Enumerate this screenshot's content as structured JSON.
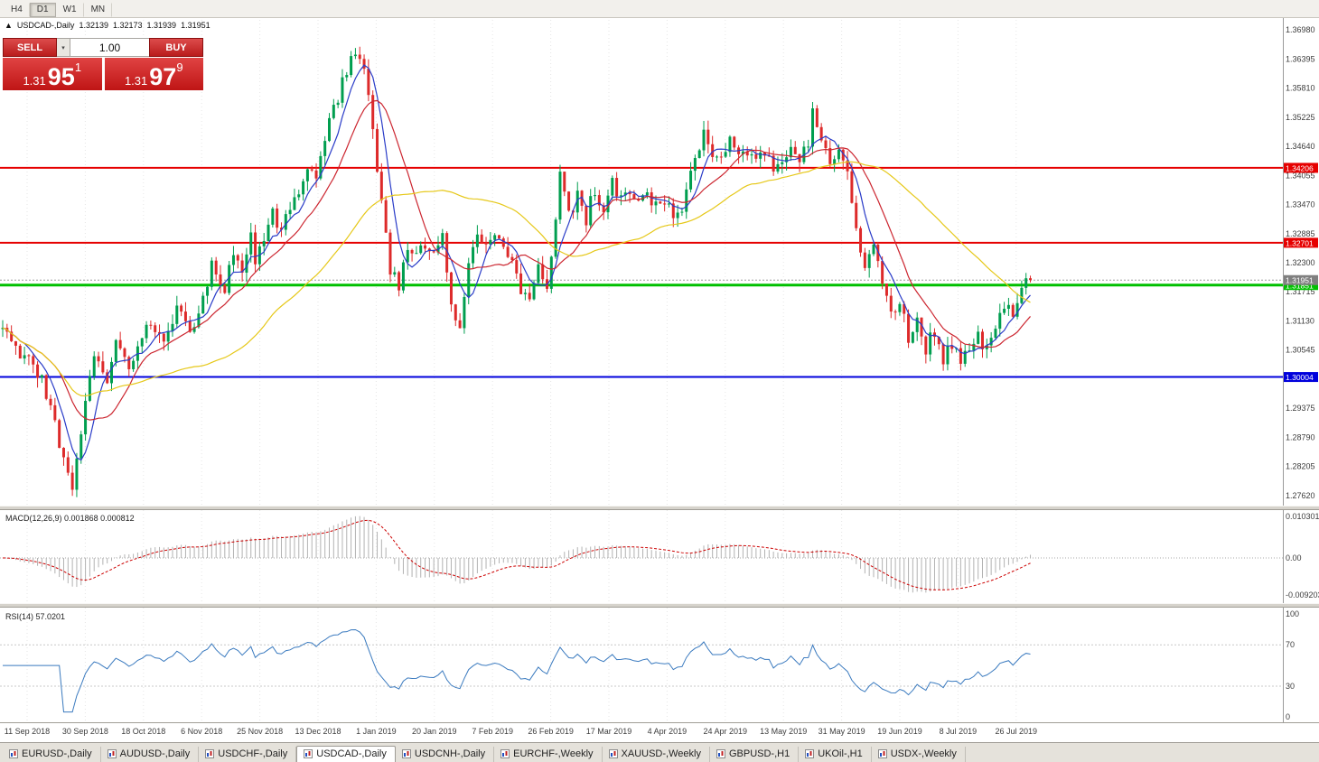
{
  "toolbar": {
    "timeframes": [
      "H4",
      "D1",
      "W1",
      "MN"
    ],
    "active": "D1"
  },
  "header": {
    "collapse_icon": "▲",
    "symbol": "USDCAD-,Daily",
    "open": "1.32139",
    "high": "1.32173",
    "low": "1.31939",
    "close": "1.31951"
  },
  "trade_panel": {
    "sell_label": "SELL",
    "buy_label": "BUY",
    "volume": "1.00",
    "volume_dropdown_icon": "▾",
    "bid": {
      "prefix": "1.31",
      "big": "95",
      "sup": "1"
    },
    "ask": {
      "prefix": "1.31",
      "big": "97",
      "sup": "9"
    }
  },
  "price_axis": {
    "labels": [
      "1.36980",
      "1.36395",
      "1.35810",
      "1.35225",
      "1.34640",
      "1.34055",
      "1.33470",
      "1.32885",
      "1.32300",
      "1.31715",
      "1.31130",
      "1.30545",
      "1.29960",
      "1.29375",
      "1.28790",
      "1.28205",
      "1.27620"
    ]
  },
  "level_lines": [
    {
      "value": 1.34206,
      "label": "1.34206",
      "color": "#e60000",
      "width": 2
    },
    {
      "value": 1.32701,
      "label": "1.32701",
      "color": "#e60000",
      "width": 2
    },
    {
      "value": 1.31851,
      "label": "1.31851",
      "color": "#00c000",
      "width": 3
    },
    {
      "value": 1.30004,
      "label": "1.30004",
      "color": "#0000dc",
      "width": 2
    }
  ],
  "current_price": {
    "value": 1.31951,
    "label": "1.31951",
    "color": "#808080"
  },
  "macd_panel": {
    "title": "MACD(12,26,9)",
    "values": "0.001868 0.000812",
    "axis_labels": [
      "0.0103011",
      "0.00",
      "-0.0092034"
    ]
  },
  "rsi_panel": {
    "title": "RSI(14)",
    "value": "57.0201",
    "axis_labels": [
      "100",
      "70",
      "30",
      "0"
    ],
    "levels": [
      70,
      30
    ]
  },
  "tabs": {
    "items": [
      "EURUSD-,Daily",
      "AUDUSD-,Daily",
      "USDCHF-,Daily",
      "USDCAD-,Daily",
      "USDCNH-,Daily",
      "EURCHF-,Weekly",
      "XAUUSD-,Weekly",
      "GBPUSD-,H1",
      "UKOil-,H1",
      "USDX-,Weekly"
    ],
    "active": "USDCAD-,Daily"
  },
  "chart_data": {
    "type": "candlestick",
    "symbol": "USDCAD",
    "timeframe": "Daily",
    "ohlc_last": {
      "open": 1.32139,
      "high": 1.32173,
      "low": 1.31939,
      "close": 1.31951
    },
    "ylim": [
      1.2742,
      1.3718
    ],
    "candle_count": 237,
    "last_close": 1.31951,
    "support_resistance_levels": [
      1.34206,
      1.32701,
      1.31851,
      1.30004
    ],
    "dates": [
      "11 Sep 2018",
      "30 Sep 2018",
      "18 Oct 2018",
      "6 Nov 2018",
      "25 Nov 2018",
      "13 Dec 2018",
      "1 Jan 2019",
      "20 Jan 2019",
      "7 Feb 2019",
      "26 Feb 2019",
      "17 Mar 2019",
      "4 Apr 2019",
      "24 Apr 2019",
      "13 May 2019",
      "31 May 2019",
      "19 Jun 2019",
      "8 Jul 2019",
      "26 Jul 2019"
    ],
    "price_anchors": [
      [
        0,
        1.31
      ],
      [
        3,
        1.306
      ],
      [
        6,
        1.3035
      ],
      [
        9,
        1.299
      ],
      [
        11,
        1.293
      ],
      [
        13,
        1.287
      ],
      [
        15,
        1.28
      ],
      [
        16,
        1.2785
      ],
      [
        18,
        1.29
      ],
      [
        21,
        1.305
      ],
      [
        24,
        1.298
      ],
      [
        26,
        1.307
      ],
      [
        29,
        1.301
      ],
      [
        31,
        1.306
      ],
      [
        34,
        1.311
      ],
      [
        37,
        1.3075
      ],
      [
        40,
        1.314
      ],
      [
        43,
        1.309
      ],
      [
        45,
        1.312
      ],
      [
        48,
        1.322
      ],
      [
        51,
        1.3175
      ],
      [
        53,
        1.3255
      ],
      [
        55,
        1.321
      ],
      [
        57,
        1.328
      ],
      [
        58,
        1.3235
      ],
      [
        60,
        1.328
      ],
      [
        62,
        1.333
      ],
      [
        64,
        1.329
      ],
      [
        66,
        1.334
      ],
      [
        68,
        1.338
      ],
      [
        70,
        1.342
      ],
      [
        72,
        1.339
      ],
      [
        74,
        1.348
      ],
      [
        77,
        1.356
      ],
      [
        79,
        1.362
      ],
      [
        81,
        1.3655
      ],
      [
        83,
        1.363
      ],
      [
        85,
        1.35
      ],
      [
        87,
        1.335
      ],
      [
        89,
        1.322
      ],
      [
        91,
        1.3185
      ],
      [
        93,
        1.326
      ],
      [
        95,
        1.3245
      ],
      [
        97,
        1.327
      ],
      [
        99,
        1.3255
      ],
      [
        101,
        1.329
      ],
      [
        103,
        1.315
      ],
      [
        105,
        1.31
      ],
      [
        107,
        1.323
      ],
      [
        109,
        1.328
      ],
      [
        111,
        1.3255
      ],
      [
        113,
        1.329
      ],
      [
        115,
        1.327
      ],
      [
        117,
        1.323
      ],
      [
        119,
        1.318
      ],
      [
        121,
        1.3155
      ],
      [
        123,
        1.322
      ],
      [
        125,
        1.3185
      ],
      [
        127,
        1.332
      ],
      [
        128,
        1.34
      ],
      [
        130,
        1.333
      ],
      [
        132,
        1.336
      ],
      [
        134,
        1.332
      ],
      [
        136,
        1.338
      ],
      [
        138,
        1.3335
      ],
      [
        140,
        1.34
      ],
      [
        142,
        1.3355
      ],
      [
        144,
        1.338
      ],
      [
        146,
        1.3345
      ],
      [
        148,
        1.337
      ],
      [
        150,
        1.334
      ],
      [
        152,
        1.336
      ],
      [
        155,
        1.332
      ],
      [
        157,
        1.337
      ],
      [
        159,
        1.343
      ],
      [
        161,
        1.35
      ],
      [
        163,
        1.345
      ],
      [
        165,
        1.3445
      ],
      [
        167,
        1.347
      ],
      [
        169,
        1.344
      ],
      [
        171,
        1.346
      ],
      [
        173,
        1.343
      ],
      [
        175,
        1.345
      ],
      [
        177,
        1.342
      ],
      [
        179,
        1.344
      ],
      [
        181,
        1.346
      ],
      [
        183,
        1.343
      ],
      [
        185,
        1.347
      ],
      [
        186,
        1.354
      ],
      [
        188,
        1.348
      ],
      [
        190,
        1.344
      ],
      [
        192,
        1.346
      ],
      [
        194,
        1.342
      ],
      [
        196,
        1.329
      ],
      [
        198,
        1.323
      ],
      [
        200,
        1.328
      ],
      [
        202,
        1.318
      ],
      [
        204,
        1.312
      ],
      [
        206,
        1.315
      ],
      [
        208,
        1.308
      ],
      [
        210,
        1.311
      ],
      [
        212,
        1.306
      ],
      [
        214,
        1.309
      ],
      [
        216,
        1.304
      ],
      [
        218,
        1.306
      ],
      [
        220,
        1.303
      ],
      [
        222,
        1.3055
      ],
      [
        224,
        1.308
      ],
      [
        226,
        1.306
      ],
      [
        228,
        1.311
      ],
      [
        230,
        1.315
      ],
      [
        232,
        1.3135
      ],
      [
        234,
        1.3175
      ],
      [
        236,
        1.31951
      ]
    ],
    "moving_averages": [
      {
        "window": 6,
        "color": "#2a3cc8"
      },
      {
        "window": 14,
        "color": "#cc2630"
      },
      {
        "window": 45,
        "color": "#e6c819"
      }
    ],
    "macd": {
      "fast": 12,
      "slow": 26,
      "signal": 9,
      "hist_color": "#b2b2b2",
      "signal_color": "#cc0000"
    },
    "rsi": {
      "period": 14,
      "color": "#3a7abf"
    },
    "colors": {
      "up": "#009e4f",
      "down": "#dd2a2a"
    }
  }
}
